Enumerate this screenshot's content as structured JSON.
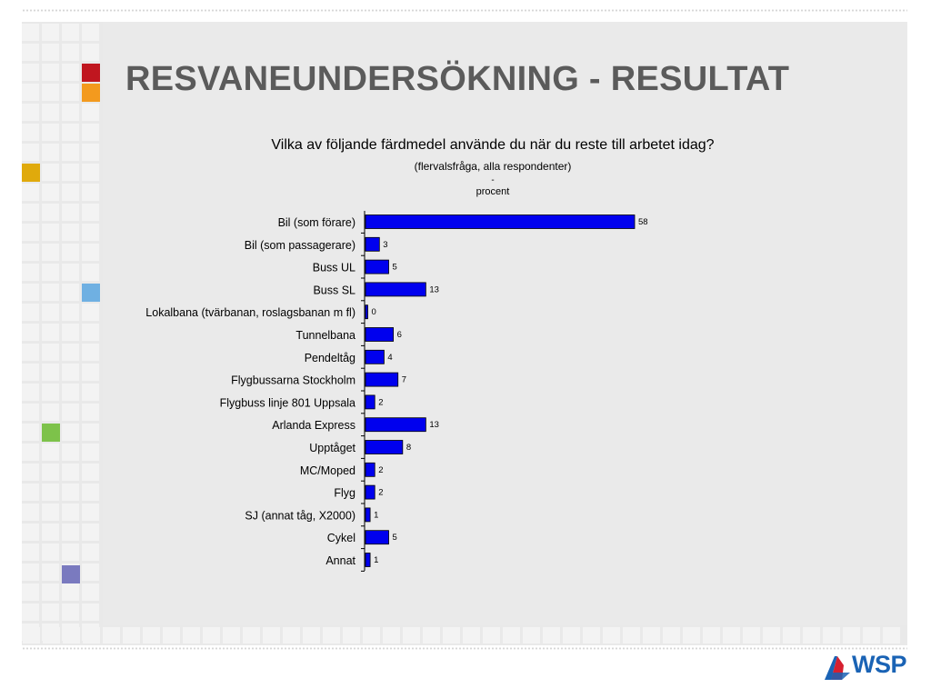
{
  "slide": {
    "title": "RESVANEUNDERSÖKNING - RESULTAT",
    "logo_text": "WSP",
    "accent_colors": [
      "#c0161f",
      "#f39a1e",
      "#e0aa0c",
      "#6fb0e2",
      "#7dc24a",
      "#7a7abf"
    ]
  },
  "chart_data": {
    "type": "bar",
    "orientation": "horizontal",
    "title": "Vilka av följande färdmedel använde du när du reste till arbetet idag?",
    "subtitle": "(flervalsfråga, alla respondenter)",
    "separator": "-",
    "unit": "procent",
    "categories": [
      "Bil (som förare)",
      "Bil (som passagerare)",
      "Buss UL",
      "Buss SL",
      "Lokalbana (tvärbanan, roslagsbanan m fl)",
      "Tunnelbana",
      "Pendeltåg",
      "Flygbussarna Stockholm",
      "Flygbuss linje 801 Uppsala",
      "Arlanda Express",
      "Upptåget",
      "MC/Moped",
      "Flyg",
      "SJ (annat tåg, X2000)",
      "Cykel",
      "Annat"
    ],
    "values": [
      58,
      3,
      5,
      13,
      0,
      6,
      4,
      7,
      2,
      13,
      8,
      2,
      2,
      1,
      5,
      1
    ],
    "value_labels": [
      "58",
      "3",
      "5",
      "13",
      "0",
      "6",
      "4",
      "7",
      "2",
      "13",
      "8",
      "2",
      "2",
      "1",
      "5",
      "1"
    ],
    "bar_color": "#0000ee",
    "xlim": [
      0,
      58
    ],
    "grid": false,
    "legend": "none"
  }
}
